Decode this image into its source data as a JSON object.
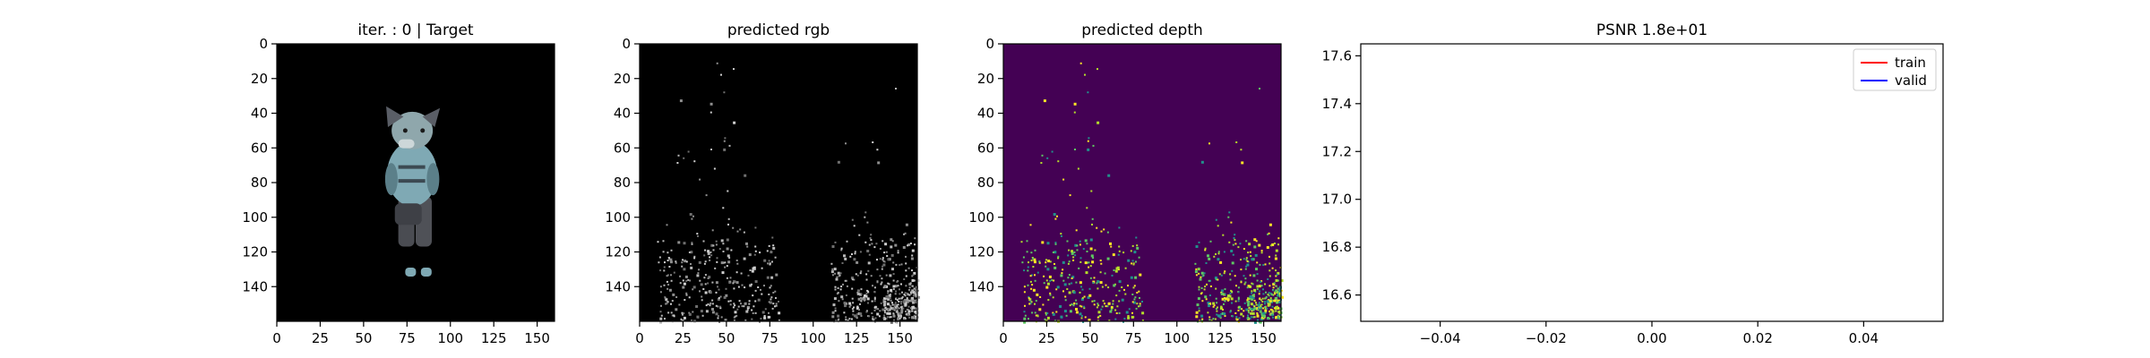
{
  "chart_data": [
    {
      "type": "image",
      "title": "iter. : 0 | Target",
      "xticks": [
        "0",
        "25",
        "50",
        "75",
        "100",
        "125",
        "150"
      ],
      "yticks": [
        "0",
        "20",
        "40",
        "60",
        "80",
        "100",
        "120",
        "140"
      ],
      "xlim": [
        0,
        160
      ],
      "ylim": [
        160,
        0
      ],
      "background": "#000000",
      "subject": "plush toy (gray cat, light blue body)"
    },
    {
      "type": "image",
      "title": "predicted rgb",
      "xticks": [
        "0",
        "25",
        "50",
        "75",
        "100",
        "125",
        "150"
      ],
      "yticks": [
        "0",
        "20",
        "40",
        "60",
        "80",
        "100",
        "120",
        "140"
      ],
      "xlim": [
        0,
        160
      ],
      "ylim": [
        160,
        0
      ],
      "background": "#000000",
      "speckle_color": "#9a9a9a"
    },
    {
      "type": "heatmap",
      "title": "predicted depth",
      "xticks": [
        "0",
        "25",
        "50",
        "75",
        "100",
        "125",
        "150"
      ],
      "yticks": [
        "0",
        "20",
        "40",
        "60",
        "80",
        "100",
        "120",
        "140"
      ],
      "xlim": [
        0,
        160
      ],
      "ylim": [
        160,
        0
      ],
      "background": "#440154",
      "colormap": "viridis"
    },
    {
      "type": "line",
      "title": "PSNR 1.8e+01",
      "xticks": [
        "−0.04",
        "−0.02",
        "0.00",
        "0.02",
        "0.04"
      ],
      "xtick_values": [
        -0.04,
        -0.02,
        0.0,
        0.02,
        0.04
      ],
      "yticks": [
        "16.6",
        "16.8",
        "17.0",
        "17.2",
        "17.4",
        "17.6"
      ],
      "ytick_values": [
        16.6,
        16.8,
        17.0,
        17.2,
        17.4,
        17.6
      ],
      "xlim": [
        -0.055,
        0.055
      ],
      "ylim": [
        16.49,
        17.65
      ],
      "legend_position": "upper right",
      "series": [
        {
          "name": "train",
          "color": "#ff0000",
          "x": [],
          "y": []
        },
        {
          "name": "valid",
          "color": "#0000ff",
          "x": [],
          "y": []
        }
      ]
    }
  ]
}
